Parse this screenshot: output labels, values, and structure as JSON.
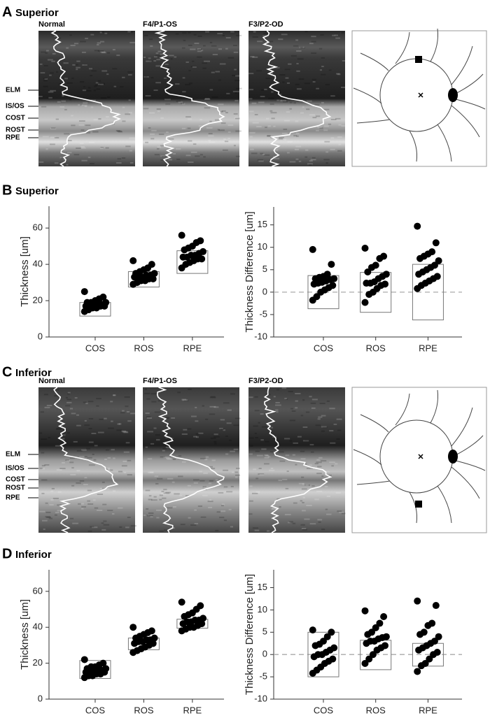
{
  "panels": [
    {
      "letter": "A",
      "title": "Superior",
      "images": [
        "Normal",
        "F4/P1-OS",
        "F3/P2-OD"
      ],
      "layers": [
        "ELM",
        "IS/OS",
        "COST",
        "ROST",
        "RPE"
      ]
    },
    {
      "letter": "B",
      "title": "Superior"
    },
    {
      "letter": "C",
      "title": "Inferior",
      "images": [
        "Normal",
        "F4/P1-OS",
        "F3/P2-OD"
      ],
      "layers": [
        "ELM",
        "IS/OS",
        "COST",
        "ROST",
        "RPE"
      ]
    },
    {
      "letter": "D",
      "title": "Inferior"
    }
  ],
  "chart_data": [
    {
      "type": "strip",
      "ylabel": "Thickness [um]",
      "categories": [
        "COS",
        "ROS",
        "RPE"
      ],
      "series": [
        {
          "values": [
            14,
            15,
            16,
            16,
            17,
            17,
            17,
            18,
            18,
            18,
            18,
            19,
            19,
            19,
            20,
            21,
            22,
            25
          ]
        },
        {
          "values": [
            29,
            30,
            31,
            31,
            32,
            32,
            33,
            33,
            33,
            34,
            34,
            35,
            35,
            36,
            37,
            38,
            40,
            42
          ]
        },
        {
          "values": [
            38,
            40,
            41,
            42,
            43,
            43,
            44,
            44,
            45,
            45,
            46,
            47,
            48,
            49,
            50,
            52,
            53,
            56
          ]
        }
      ],
      "box_low": [
        11.5,
        27.5,
        35
      ],
      "box_high": [
        19,
        36,
        47.5
      ],
      "color": "#000000",
      "ylim": [
        0,
        72
      ],
      "yticks": [
        0,
        20,
        40,
        60
      ]
    },
    {
      "type": "strip",
      "ylabel": "Thickness Difference [um]",
      "categories": [
        "COS",
        "ROS",
        "RPE"
      ],
      "series": [
        {
          "values": [
            -1.8,
            -1,
            0,
            0.5,
            1,
            1.5,
            1.8,
            2,
            2.2,
            2.5,
            2.8,
            3,
            3,
            3.3,
            3.5,
            4,
            6.2,
            9.5
          ]
        },
        {
          "values": [
            -2.3,
            -0.5,
            0,
            0.8,
            1.5,
            1.8,
            2,
            2,
            2.3,
            3,
            3.5,
            4,
            4.5,
            5.5,
            6,
            7.5,
            8,
            9.8
          ]
        },
        {
          "values": [
            0.8,
            1.5,
            2,
            2.5,
            3,
            3.5,
            4,
            4.5,
            5,
            5.5,
            6,
            7,
            7.5,
            8,
            8.5,
            9,
            11,
            14.7
          ]
        }
      ],
      "box_low": [
        -3.7,
        -4.5,
        -6.2
      ],
      "box_high": [
        3.7,
        4.4,
        6.2
      ],
      "color": "#000000",
      "ylim": [
        -10,
        19
      ],
      "yticks": [
        -10,
        -5,
        0,
        5,
        10,
        15
      ],
      "hline": 0
    },
    {
      "type": "strip",
      "ylabel": "Thickness [um]",
      "categories": [
        "COS",
        "ROS",
        "RPE"
      ],
      "series": [
        {
          "values": [
            12,
            13,
            13,
            14,
            14,
            15,
            15,
            15,
            16,
            16,
            16,
            17,
            17,
            18,
            18,
            19,
            20,
            22
          ]
        },
        {
          "values": [
            26,
            27,
            28,
            29,
            30,
            31,
            31,
            32,
            32,
            33,
            33,
            34,
            34,
            35,
            36,
            37,
            38,
            40
          ]
        },
        {
          "values": [
            38,
            39,
            40,
            40,
            41,
            42,
            42,
            43,
            43,
            44,
            44,
            45,
            46,
            47,
            48,
            50,
            52,
            54
          ]
        }
      ],
      "box_low": [
        11.5,
        27.5,
        39.5
      ],
      "box_high": [
        21.5,
        34,
        44.5
      ],
      "color": "#000000",
      "ylim": [
        0,
        72
      ],
      "yticks": [
        0,
        20,
        40,
        60
      ]
    },
    {
      "type": "strip",
      "ylabel": "Thickness Difference [um]",
      "categories": [
        "COS",
        "ROS",
        "RPE"
      ],
      "series": [
        {
          "values": [
            -4.2,
            -3.5,
            -2.8,
            -2,
            -1.5,
            -1,
            -0.5,
            0,
            0,
            0.5,
            1,
            1.5,
            2,
            2.3,
            3,
            4,
            5,
            5.5
          ]
        },
        {
          "values": [
            -2,
            -1,
            0,
            1,
            1.5,
            2,
            2.5,
            3,
            3,
            3.5,
            3.8,
            4,
            4.5,
            5,
            6,
            7,
            8.5,
            9.8
          ]
        },
        {
          "values": [
            -3.8,
            -2.5,
            -2,
            -1,
            0,
            0.5,
            1,
            1.5,
            2,
            2.5,
            3,
            4,
            4.5,
            5,
            6.5,
            7,
            11,
            12
          ]
        }
      ],
      "box_low": [
        -5,
        -3.4,
        -2.6
      ],
      "box_high": [
        5,
        3.2,
        2.5
      ],
      "color": "#000000",
      "ylim": [
        -10,
        19
      ],
      "yticks": [
        -10,
        -5,
        0,
        5,
        10,
        15
      ],
      "hline": 0
    }
  ]
}
